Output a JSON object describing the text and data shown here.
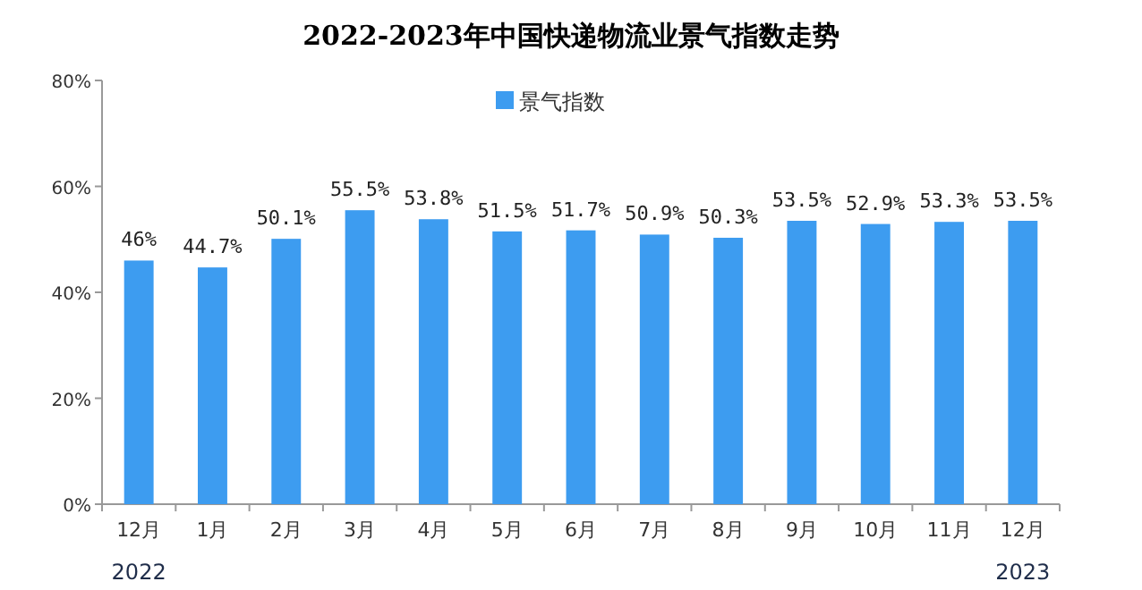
{
  "chart_data": {
    "type": "bar",
    "title": "2022-2023年中国快递物流业景气指数走势",
    "categories": [
      "12月",
      "1月",
      "2月",
      "3月",
      "4月",
      "5月",
      "6月",
      "7月",
      "8月",
      "9月",
      "10月",
      "11月",
      "12月"
    ],
    "series": [
      {
        "name": "景气指数",
        "color": "#3d9cf0",
        "values": [
          46,
          44.7,
          50.1,
          55.5,
          53.8,
          51.5,
          51.7,
          50.9,
          50.3,
          53.5,
          52.9,
          53.3,
          53.5
        ],
        "value_labels": [
          "46%",
          "44.7%",
          "50.1%",
          "55.5%",
          "53.8%",
          "51.5%",
          "51.7%",
          "50.9%",
          "50.3%",
          "53.5%",
          "52.9%",
          "53.3%",
          "53.5%"
        ]
      }
    ],
    "ylim": [
      0,
      80
    ],
    "yticks": [
      {
        "value": 0,
        "label": "0%"
      },
      {
        "value": 20,
        "label": "20%"
      },
      {
        "value": 40,
        "label": "40%"
      },
      {
        "value": 60,
        "label": "60%"
      },
      {
        "value": 80,
        "label": "80%"
      }
    ],
    "legend": "top",
    "annotations": [
      "2022",
      "2023"
    ]
  }
}
